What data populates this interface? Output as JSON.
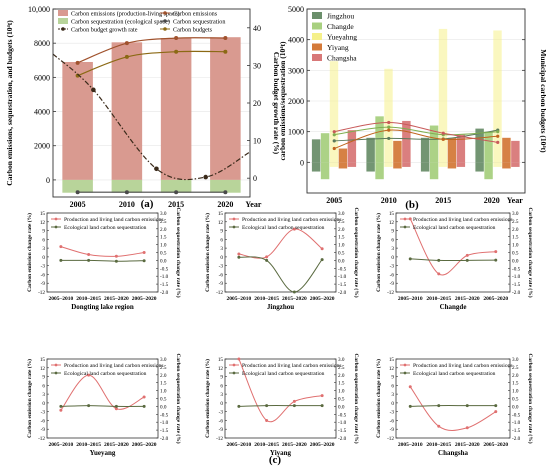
{
  "figure": {
    "label_a": "(a)",
    "label_b": "(b)",
    "label_c": "(c)"
  },
  "chart_data": [
    {
      "id": "a",
      "type": "bar",
      "categories": [
        "2005",
        "2010",
        "2015",
        "2020"
      ],
      "x_axis_suffix": "Year",
      "ylabel": "Carbon emissions, sequestration, and budgets (10⁴t)",
      "y2label": "Carbon budget growth rate (%)",
      "ylim": [
        -1000,
        10000
      ],
      "y2lim": [
        -5,
        45
      ],
      "yticks": [
        0,
        2000,
        4000,
        6000,
        8000,
        10000
      ],
      "yticklabels": [
        "0",
        "2000",
        "4000",
        "6000",
        "8000",
        "10,000"
      ],
      "y2ticks": [
        0,
        10,
        20,
        30,
        40
      ],
      "legend": [
        "Carbon emissions (production-living space)",
        "Carbon emissions",
        "Carbon sequestration (ecological space)",
        "Carbon sequestration",
        "Carbon budget growth rate",
        "Carbon budgets"
      ],
      "colors": {
        "emission_bar": "#d99a90",
        "sequestration_bar": "#b8d49a",
        "emission_line": "#a0522d",
        "budget_line": "#8b6914",
        "growth": "#3a2a1a"
      },
      "series": [
        {
          "name": "Carbon emissions (production-living space)",
          "kind": "bar",
          "values": [
            6900,
            8050,
            8300,
            8350
          ]
        },
        {
          "name": "Carbon sequestration (ecological space)",
          "kind": "bar",
          "values": [
            -750,
            -750,
            -750,
            -750
          ]
        },
        {
          "name": "Carbon emissions",
          "kind": "line",
          "values": [
            6850,
            8000,
            8300,
            8300
          ]
        },
        {
          "name": "Carbon budgets",
          "kind": "line",
          "values": [
            6100,
            7200,
            7500,
            7500
          ]
        },
        {
          "name": "Carbon sequestration",
          "kind": "line",
          "values": [
            -720,
            -720,
            -720,
            -720
          ]
        }
      ],
      "growth_rate": [
        {
          "x": 2006.6,
          "y": 23.5
        },
        {
          "x": 2013.0,
          "y": 2.5
        },
        {
          "x": 2018.0,
          "y": 0.3
        }
      ]
    },
    {
      "id": "b",
      "type": "bar",
      "categories": [
        "2005",
        "2010",
        "2015",
        "2020"
      ],
      "x_axis_suffix": "Year",
      "ylabel": "carbon emissions/sequestration (10⁴t)",
      "y2label": "Municipal carbon budgets (10⁴t)",
      "ylim": [
        -1000,
        5000
      ],
      "y2lim": [
        -1000,
        5000
      ],
      "yticks": [
        0,
        1000,
        2000,
        3000,
        4000,
        5000
      ],
      "legend": [
        "Jingzhou",
        "Changde",
        "Yueyahng",
        "Yiyang",
        "Changsha"
      ],
      "colors": [
        "#6b8f6b",
        "#a8d080",
        "#f5f08a",
        "#d47a3a",
        "#d87878"
      ],
      "emissions": [
        {
          "name": "Jingzhou",
          "values": [
            750,
            800,
            800,
            1100
          ]
        },
        {
          "name": "Changde",
          "values": [
            950,
            1500,
            1200,
            1000
          ]
        },
        {
          "name": "Yueyahng",
          "values": [
            3300,
            3050,
            4350,
            4300
          ]
        },
        {
          "name": "Yiyang",
          "values": [
            450,
            700,
            800,
            800
          ]
        },
        {
          "name": "Changsha",
          "values": [
            1050,
            1350,
            900,
            700
          ]
        }
      ],
      "sequestration": [
        {
          "name": "Jingzhou",
          "values": [
            -300,
            -300,
            -300,
            -300
          ]
        },
        {
          "name": "Changde",
          "values": [
            -550,
            -550,
            -550,
            -550
          ]
        },
        {
          "name": "Yueyahng",
          "values": [
            -150,
            -150,
            -150,
            -150
          ]
        },
        {
          "name": "Yiyang",
          "values": [
            -200,
            -200,
            -200,
            -200
          ]
        },
        {
          "name": "Changsha",
          "values": [
            -150,
            -150,
            -150,
            -150
          ]
        }
      ],
      "budgets": [
        {
          "name": "Jingzhou",
          "values": [
            700,
            780,
            760,
            1050
          ]
        },
        {
          "name": "Changde",
          "values": [
            900,
            1150,
            900,
            1000
          ]
        },
        {
          "name": "Yiyang",
          "values": [
            450,
            1050,
            750,
            850
          ]
        },
        {
          "name": "Changsha",
          "values": [
            1000,
            1300,
            950,
            650
          ]
        }
      ]
    },
    {
      "id": "c",
      "type": "line",
      "categories": [
        "2005–2010",
        "2010–2015",
        "2015–2020",
        "2005–2020"
      ],
      "ylabel": "Carbon emission change rate (%)",
      "y2label": "Carbon sequestration change rate (%)",
      "ylim": [
        -12,
        15
      ],
      "y2lim": [
        -2.0,
        3.0
      ],
      "yticks": [
        -12,
        -9,
        -6,
        -3,
        0,
        3,
        6,
        9,
        12,
        15
      ],
      "y2ticks": [
        -2.0,
        -1.5,
        -1.0,
        -0.5,
        0.0,
        0.5,
        1.0,
        1.5,
        2.0,
        2.5,
        3.0
      ],
      "legend": [
        "Production and living land carbon emissions",
        "Ecological land carbon sequestration"
      ],
      "colors": {
        "emission": "#e07070",
        "sequestration": "#5a6a40"
      },
      "panels": [
        {
          "region": "Dongting lake region",
          "emission": [
            3.5,
            0.8,
            0.2,
            1.5
          ],
          "sequestration": [
            0.0,
            0.0,
            -0.05,
            -0.02
          ]
        },
        {
          "region": "Jingzhou",
          "emission": [
            1.0,
            0.0,
            9.5,
            2.8
          ],
          "sequestration": [
            0.2,
            0.0,
            -2.0,
            0.05
          ]
        },
        {
          "region": "Changde",
          "emission": [
            13.0,
            -5.8,
            0.5,
            1.8
          ],
          "sequestration": [
            0.1,
            0.0,
            0.0,
            0.02
          ]
        },
        {
          "region": "Yueyang",
          "emission": [
            -2.5,
            9.5,
            -2.0,
            2.0
          ],
          "sequestration": [
            0.0,
            0.05,
            0.0,
            0.0
          ]
        },
        {
          "region": "Yiyang",
          "emission": [
            15.0,
            -6.0,
            0.5,
            2.5
          ],
          "sequestration": [
            0.0,
            0.05,
            0.05,
            0.05
          ]
        },
        {
          "region": "Changsha",
          "emission": [
            5.5,
            -8.0,
            -8.5,
            -3.0
          ],
          "sequestration": [
            0.0,
            0.05,
            0.05,
            0.05
          ]
        }
      ]
    }
  ]
}
